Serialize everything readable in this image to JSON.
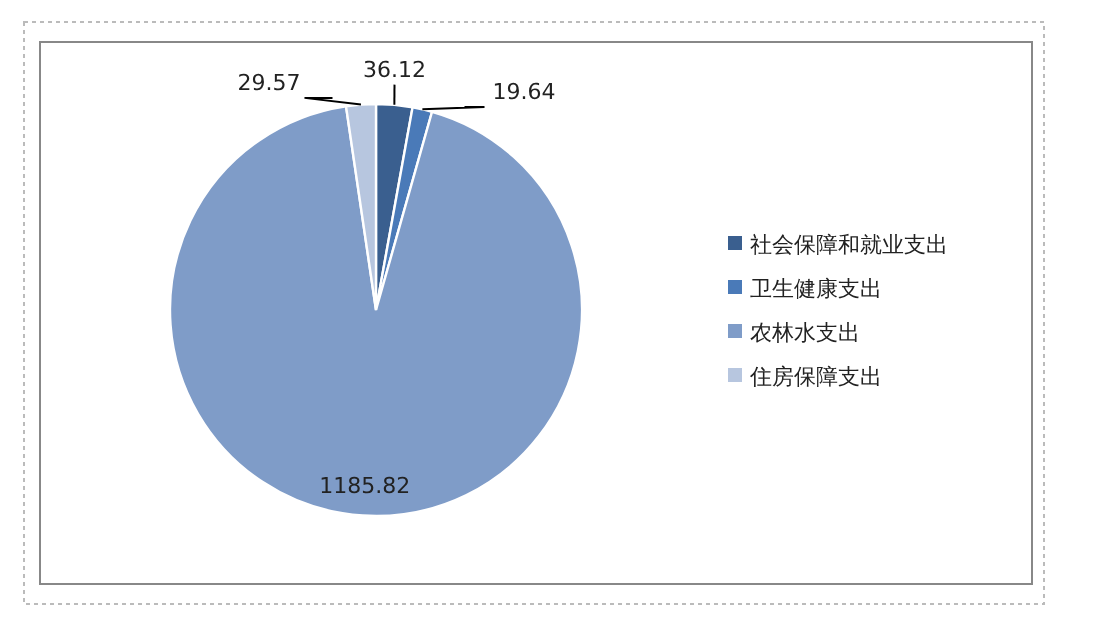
{
  "chart_data": {
    "type": "pie",
    "categories": [
      "社会保障和就业支出",
      "卫生健康支出",
      "农林水支出",
      "住房保障支出"
    ],
    "values": [
      36.12,
      19.64,
      1185.82,
      29.57
    ],
    "colors": [
      "#3a5f8f",
      "#4a7ab8",
      "#7f9cc8",
      "#b7c6df"
    ],
    "data_labels": true,
    "legend": "right"
  }
}
